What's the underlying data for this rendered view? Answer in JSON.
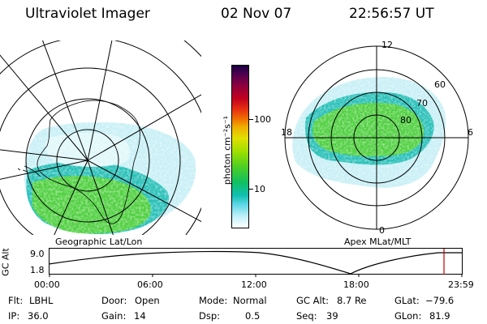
{
  "header": {
    "instrument": "Ultraviolet Imager",
    "date": "02 Nov 07",
    "time": "22:56:57 UT"
  },
  "left_map": {
    "caption": "Geographic Lat/Lon"
  },
  "colorbar": {
    "unit_label": "photon cm⁻²s⁻¹",
    "ticks": [
      "100",
      "10"
    ],
    "colors": [
      "#1a0040",
      "#4b0050",
      "#8b0040",
      "#c00020",
      "#e83010",
      "#f07000",
      "#f0b000",
      "#e0e000",
      "#a0e000",
      "#50d020",
      "#10c060",
      "#10c0b0",
      "#60d8e8",
      "#c0f0f8",
      "#ffffff"
    ]
  },
  "right_map": {
    "caption": "Apex MLat/MLT",
    "mlt_labels": [
      "12",
      "18",
      "6",
      "0"
    ],
    "mlat_labels": [
      "60",
      "70",
      "80"
    ]
  },
  "altitude_plot": {
    "ylabel": "GC Alt",
    "yticks": [
      "9.0",
      "1.8"
    ],
    "xticks": [
      "00:00",
      "06:00",
      "12:00",
      "18:00",
      "23:59"
    ]
  },
  "info": {
    "row1": [
      {
        "label": "Flt:",
        "value": "LBHL"
      },
      {
        "label": "Door:",
        "value": "Open"
      },
      {
        "label": "Mode:",
        "value": "Normal"
      },
      {
        "label": "GC Alt:",
        "value": "8.7 Re"
      },
      {
        "label": "GLat:",
        "value": "−79.6"
      }
    ],
    "row2": [
      {
        "label": "IP:",
        "value": "36.0"
      },
      {
        "label": "Gain:",
        "value": "14"
      },
      {
        "label": "Dsp:",
        "value": "0.5"
      },
      {
        "label": "Seq:",
        "value": "39"
      },
      {
        "label": "GLon:",
        "value": "81.9"
      }
    ]
  }
}
